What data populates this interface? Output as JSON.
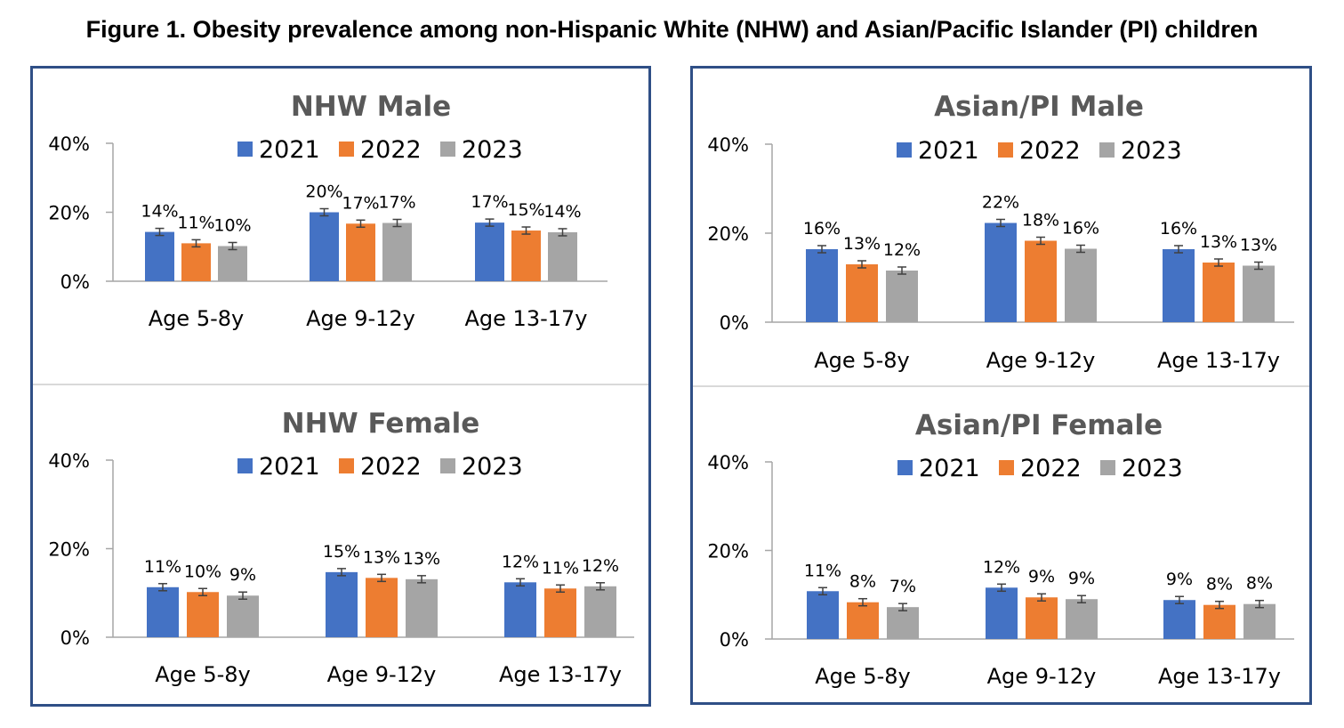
{
  "title": "Figure 1. Obesity prevalence among non-Hispanic White (NHW) and Asian/Pacific Islander (PI) children",
  "colors": {
    "2021": "#4472c4",
    "2022": "#ed7d31",
    "2023": "#a5a5a5",
    "error_bar": "#404040",
    "frame": "#2f4f86",
    "divider": "#d9d9d9",
    "axis": "#a6a6a6"
  },
  "chart_data": [
    {
      "type": "bar",
      "title": "NHW Male",
      "categories": [
        "Age 5-8y",
        "Age 9-12y",
        "Age 13-17y"
      ],
      "series": [
        {
          "name": "2021",
          "values": [
            14.3,
            20.0,
            17.0
          ],
          "labels": [
            "14%",
            "20%",
            "17%"
          ]
        },
        {
          "name": "2022",
          "values": [
            11.0,
            16.7,
            14.7
          ],
          "labels": [
            "11%",
            "17%",
            "15%"
          ]
        },
        {
          "name": "2023",
          "values": [
            10.2,
            16.9,
            14.2
          ],
          "labels": [
            "10%",
            "17%",
            "14%"
          ]
        }
      ],
      "ylim": [
        0,
        40
      ],
      "yticks": [
        "0%",
        "20%",
        "40%"
      ],
      "legend": "top",
      "grid": false
    },
    {
      "type": "bar",
      "title": "NHW Female",
      "categories": [
        "Age 5-8y",
        "Age 9-12y",
        "Age 13-17y"
      ],
      "series": [
        {
          "name": "2021",
          "values": [
            11.3,
            14.7,
            12.4
          ],
          "labels": [
            "11%",
            "15%",
            "12%"
          ]
        },
        {
          "name": "2022",
          "values": [
            10.2,
            13.4,
            11.0
          ],
          "labels": [
            "10%",
            "13%",
            "11%"
          ]
        },
        {
          "name": "2023",
          "values": [
            9.4,
            13.1,
            11.5
          ],
          "labels": [
            "9%",
            "13%",
            "12%"
          ]
        }
      ],
      "ylim": [
        0,
        40
      ],
      "yticks": [
        "0%",
        "20%",
        "40%"
      ],
      "legend": "top",
      "grid": false
    },
    {
      "type": "bar",
      "title": "Asian/PI Male",
      "categories": [
        "Age 5-8y",
        "Age 9-12y",
        "Age 13-17y"
      ],
      "series": [
        {
          "name": "2021",
          "values": [
            16.4,
            22.3,
            16.4
          ],
          "labels": [
            "16%",
            "22%",
            "16%"
          ]
        },
        {
          "name": "2022",
          "values": [
            13.0,
            18.3,
            13.4
          ],
          "labels": [
            "13%",
            "18%",
            "13%"
          ]
        },
        {
          "name": "2023",
          "values": [
            11.6,
            16.5,
            12.7
          ],
          "labels": [
            "12%",
            "16%",
            "13%"
          ]
        }
      ],
      "ylim": [
        0,
        40
      ],
      "yticks": [
        "0%",
        "20%",
        "40%"
      ],
      "legend": "top",
      "grid": false
    },
    {
      "type": "bar",
      "title": "Asian/PI Female",
      "categories": [
        "Age 5-8y",
        "Age 9-12y",
        "Age 13-17y"
      ],
      "series": [
        {
          "name": "2021",
          "values": [
            10.8,
            11.6,
            8.8
          ],
          "labels": [
            "11%",
            "12%",
            "9%"
          ]
        },
        {
          "name": "2022",
          "values": [
            8.3,
            9.4,
            7.7
          ],
          "labels": [
            "8%",
            "9%",
            "8%"
          ]
        },
        {
          "name": "2023",
          "values": [
            7.2,
            9.0,
            7.9
          ],
          "labels": [
            "7%",
            "9%",
            "8%"
          ]
        }
      ],
      "ylim": [
        0,
        40
      ],
      "yticks": [
        "0%",
        "20%",
        "40%"
      ],
      "legend": "top",
      "grid": false
    }
  ]
}
